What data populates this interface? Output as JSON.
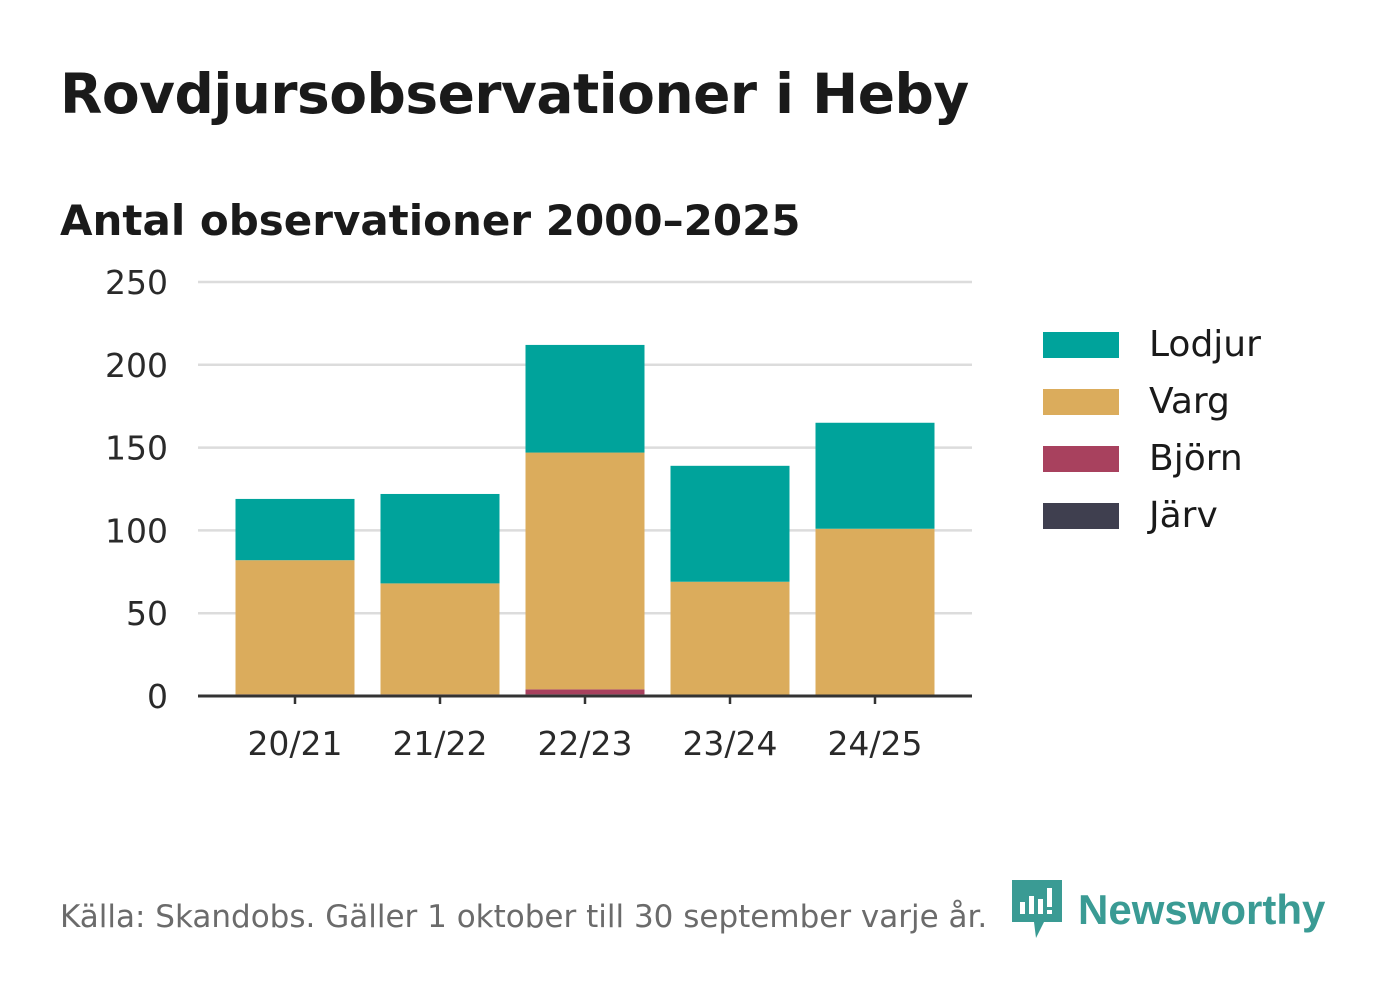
{
  "header": {
    "title": "Rovdjursobservationer i Heby",
    "subtitle": "Antal observationer 2000–2025"
  },
  "chart_data": {
    "type": "bar",
    "stacked": true,
    "title": "Rovdjursobservationer i Heby",
    "subtitle": "Antal observationer 2000–2025",
    "xlabel": "",
    "ylabel": "",
    "ylim": [
      0,
      250
    ],
    "yticks": [
      0,
      50,
      100,
      150,
      200,
      250
    ],
    "grid": true,
    "legend_position": "right",
    "categories": [
      "20/21",
      "21/22",
      "22/23",
      "23/24",
      "24/25"
    ],
    "series": [
      {
        "name": "Järv",
        "color": "#3f3f4f",
        "values": [
          0,
          0,
          1,
          0,
          0
        ]
      },
      {
        "name": "Björn",
        "color": "#a8415e",
        "values": [
          1,
          1,
          3,
          0,
          0
        ]
      },
      {
        "name": "Varg",
        "color": "#dbac5c",
        "values": [
          81,
          67,
          143,
          69,
          101
        ]
      },
      {
        "name": "Lodjur",
        "color": "#00a39b",
        "values": [
          37,
          54,
          65,
          70,
          64
        ]
      }
    ]
  },
  "legend": {
    "items": [
      {
        "label": "Lodjur",
        "color": "#00a39b"
      },
      {
        "label": "Varg",
        "color": "#dbac5c"
      },
      {
        "label": "Björn",
        "color": "#a8415e"
      },
      {
        "label": "Järv",
        "color": "#3f3f4f"
      }
    ]
  },
  "footer": {
    "source": "Källa: Skandobs. Gäller 1 oktober till 30 september varje år.",
    "brand": "Newsworthy",
    "brand_icon": "bar-chart-speech-bubble-icon",
    "brand_color": "#3a9b94"
  }
}
